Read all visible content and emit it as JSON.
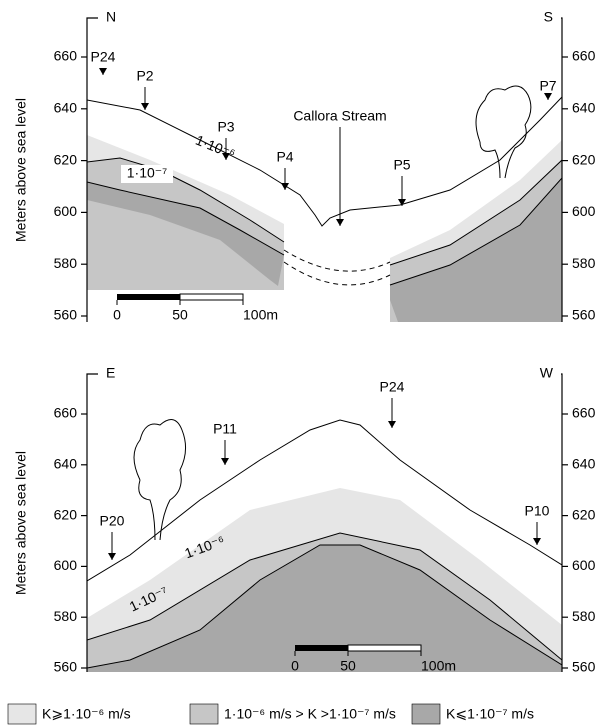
{
  "panels": [
    {
      "left_end": "N",
      "right_end": "S",
      "y_axis_label": "Meters above sea level",
      "yticks": [
        560,
        580,
        600,
        620,
        640,
        660
      ],
      "labels": [
        "P24",
        "P2",
        "P3",
        "P4",
        "Callora Stream",
        "P5",
        "P7"
      ],
      "isolines": [
        "1·10⁻⁶",
        "1·10⁻⁷"
      ],
      "scale_bar": [
        "0",
        "50",
        "100m"
      ]
    },
    {
      "left_end": "E",
      "right_end": "W",
      "y_axis_label": "Meters above sea level",
      "yticks": [
        560,
        580,
        600,
        620,
        640,
        660
      ],
      "labels": [
        "P20",
        "P11",
        "P24",
        "P10"
      ],
      "isolines": [
        "1·10⁻⁶",
        "1·10⁻⁷"
      ],
      "scale_bar": [
        "0",
        "50",
        "100m"
      ]
    }
  ],
  "legend": [
    "K⩾1·10⁻⁶ m/s",
    "1·10⁻⁶ m/s > K >1·10⁻⁷ m/s",
    "K⩽1·10⁻⁷ m/s"
  ]
}
